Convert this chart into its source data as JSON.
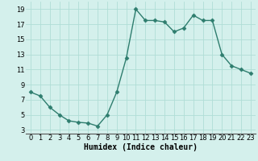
{
  "x": [
    0,
    1,
    2,
    3,
    4,
    5,
    6,
    7,
    8,
    9,
    10,
    11,
    12,
    13,
    14,
    15,
    16,
    17,
    18,
    19,
    20,
    21,
    22,
    23
  ],
  "y": [
    8,
    7.5,
    6,
    5,
    4.2,
    4.0,
    3.9,
    3.5,
    5,
    8,
    12.5,
    19,
    17.5,
    17.5,
    17.3,
    16.0,
    16.5,
    18.2,
    17.5,
    17.5,
    13,
    11.5,
    11,
    10.5
  ],
  "line_color": "#2e7d6e",
  "marker_color": "#2e7d6e",
  "bg_color": "#d4f0ec",
  "grid_color": "#b0ddd6",
  "xlabel": "Humidex (Indice chaleur)",
  "xlim": [
    -0.5,
    23.5
  ],
  "ylim": [
    2.5,
    20
  ],
  "yticks": [
    3,
    5,
    7,
    9,
    11,
    13,
    15,
    17,
    19
  ],
  "xticks": [
    0,
    1,
    2,
    3,
    4,
    5,
    6,
    7,
    8,
    9,
    10,
    11,
    12,
    13,
    14,
    15,
    16,
    17,
    18,
    19,
    20,
    21,
    22,
    23
  ],
  "label_fontsize": 7,
  "tick_fontsize": 6,
  "line_width": 1.0,
  "marker_size": 2.5
}
